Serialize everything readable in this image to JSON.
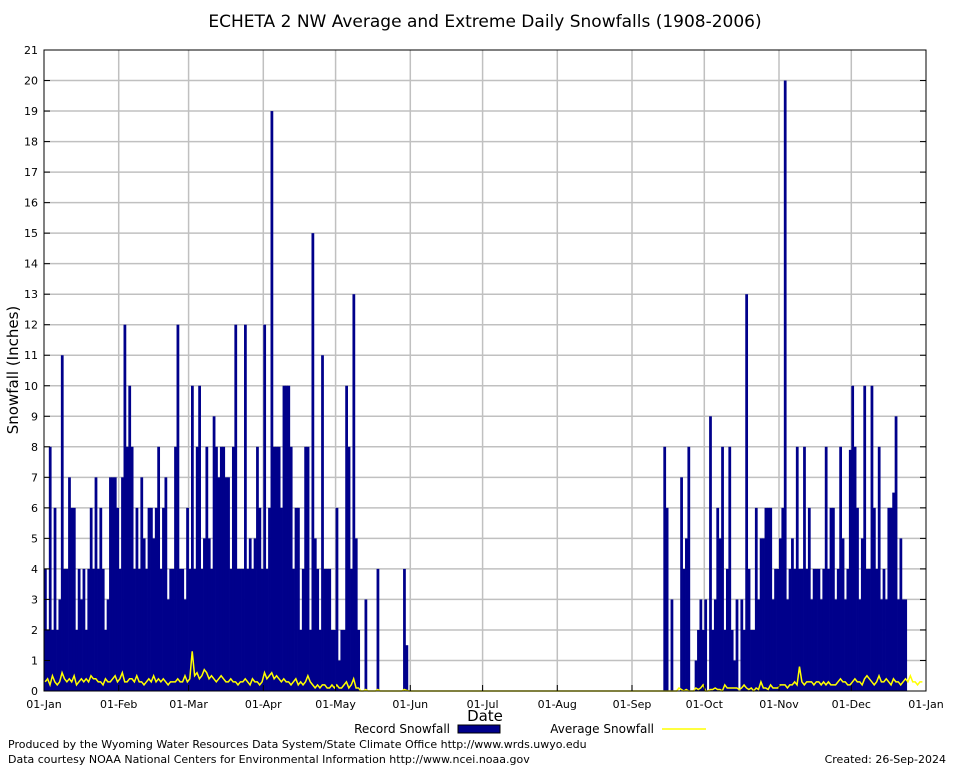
{
  "chart_data": {
    "type": "bar",
    "title": "ECHETA 2 NW Average and Extreme Daily Snowfalls (1908-2006)",
    "xlabel": "Date",
    "ylabel": "Snowfall (Inches)",
    "ylim": [
      0,
      21
    ],
    "yticks": [
      "0",
      "1",
      "2",
      "3",
      "4",
      "5",
      "6",
      "7",
      "8",
      "9",
      "10",
      "11",
      "12",
      "13",
      "14",
      "15",
      "16",
      "17",
      "18",
      "19",
      "20",
      "21"
    ],
    "xticks": [
      {
        "label": "01-Jan",
        "day": 0
      },
      {
        "label": "01-Feb",
        "day": 31
      },
      {
        "label": "01-Mar",
        "day": 60
      },
      {
        "label": "01-Apr",
        "day": 91
      },
      {
        "label": "01-May",
        "day": 121
      },
      {
        "label": "01-Jun",
        "day": 152
      },
      {
        "label": "01-Jul",
        "day": 182
      },
      {
        "label": "01-Aug",
        "day": 213
      },
      {
        "label": "01-Sep",
        "day": 244
      },
      {
        "label": "01-Oct",
        "day": 274
      },
      {
        "label": "01-Nov",
        "day": 305
      },
      {
        "label": "01-Dec",
        "day": 335
      },
      {
        "label": "01-Jan",
        "day": 366
      }
    ],
    "days": 366,
    "grid": true,
    "legend_position": "bottom",
    "series": [
      {
        "name": "Record Snowfall",
        "color": "#00008b",
        "values": [
          4,
          2,
          8,
          2,
          6,
          2,
          3,
          11,
          4,
          4,
          7,
          6,
          6,
          2,
          4,
          3,
          4,
          2,
          4,
          6,
          4,
          7,
          4,
          6,
          4,
          2,
          3,
          7,
          7,
          7,
          6,
          4,
          7,
          12,
          8,
          10,
          8,
          4,
          6,
          4,
          7,
          5,
          4,
          6,
          6,
          5,
          6,
          8,
          4,
          6,
          7,
          3,
          4,
          4,
          8,
          12,
          4,
          4,
          3,
          6,
          4,
          10,
          4,
          8,
          10,
          4,
          5,
          8,
          5,
          4,
          9,
          8,
          7,
          8,
          8,
          7,
          7,
          4,
          8,
          12,
          4,
          4,
          4,
          12,
          4,
          5,
          4,
          5,
          8,
          6,
          4,
          12,
          4,
          6,
          19,
          8,
          8,
          8,
          6,
          10,
          10,
          10,
          8,
          4,
          6,
          6,
          2,
          4,
          8,
          8,
          2,
          15,
          5,
          4,
          2,
          11,
          4,
          4,
          4,
          2,
          2,
          6,
          1,
          2,
          2,
          10,
          8,
          4,
          13,
          5,
          2,
          0,
          0,
          3,
          0,
          0,
          0,
          0,
          4,
          0,
          0,
          0,
          0,
          0,
          0,
          0,
          0,
          0,
          0,
          4,
          1.5,
          0,
          0,
          0,
          0,
          0,
          0,
          0,
          0,
          0,
          0,
          0,
          0,
          0,
          0,
          0,
          0,
          0,
          0,
          0,
          0,
          0,
          0,
          0,
          0,
          0,
          0,
          0,
          0,
          0,
          0,
          0,
          0,
          0,
          0,
          0,
          0,
          0,
          0,
          0,
          0,
          0,
          0,
          0,
          0,
          0,
          0,
          0,
          0,
          0,
          0,
          0,
          0,
          0,
          0,
          0,
          0,
          0,
          0,
          0,
          0,
          0,
          0,
          0,
          0,
          0,
          0,
          0,
          0,
          0,
          0,
          0,
          0,
          0,
          0,
          0,
          0,
          0,
          0,
          0,
          0,
          0,
          0,
          0,
          0,
          0,
          0,
          0,
          0,
          0,
          0,
          0,
          0,
          0,
          0,
          0,
          0,
          0,
          0,
          0,
          0,
          0,
          0,
          0,
          0,
          0,
          0,
          8,
          6,
          0,
          3,
          0,
          0,
          0,
          7,
          4,
          5,
          8,
          0,
          0,
          1,
          2,
          3,
          2,
          3,
          0,
          9,
          2,
          3,
          6,
          5,
          8,
          2,
          4,
          8,
          2,
          1,
          3,
          0,
          3,
          2,
          13,
          4,
          2,
          2,
          6,
          3,
          5,
          5,
          6,
          6,
          6,
          3,
          4,
          4,
          5,
          6,
          20,
          3,
          4,
          5,
          4,
          8,
          4,
          4,
          8,
          4,
          6,
          3,
          4,
          4,
          4,
          3,
          4,
          8,
          4,
          6,
          6,
          3,
          4,
          8,
          5,
          3,
          4,
          7.9,
          10,
          8,
          6,
          3,
          5,
          10,
          4,
          4,
          10,
          6,
          4,
          8,
          3,
          4,
          3,
          6,
          6,
          6.5,
          9,
          3,
          5,
          3,
          3
        ]
      },
      {
        "name": "Average Snowfall",
        "color": "#ffff00",
        "values": [
          0.3,
          0.4,
          0.2,
          0.5,
          0.3,
          0.2,
          0.3,
          0.6,
          0.4,
          0.3,
          0.4,
          0.3,
          0.5,
          0.2,
          0.3,
          0.4,
          0.3,
          0.4,
          0.3,
          0.5,
          0.4,
          0.4,
          0.3,
          0.3,
          0.2,
          0.4,
          0.3,
          0.3,
          0.4,
          0.5,
          0.3,
          0.4,
          0.6,
          0.3,
          0.3,
          0.4,
          0.4,
          0.3,
          0.5,
          0.3,
          0.3,
          0.2,
          0.3,
          0.4,
          0.3,
          0.5,
          0.3,
          0.4,
          0.3,
          0.4,
          0.3,
          0.2,
          0.3,
          0.3,
          0.3,
          0.4,
          0.3,
          0.3,
          0.5,
          0.3,
          0.4,
          1.3,
          0.5,
          0.6,
          0.4,
          0.5,
          0.7,
          0.6,
          0.4,
          0.5,
          0.4,
          0.3,
          0.4,
          0.5,
          0.4,
          0.3,
          0.3,
          0.4,
          0.3,
          0.3,
          0.2,
          0.3,
          0.3,
          0.4,
          0.3,
          0.2,
          0.4,
          0.3,
          0.3,
          0.2,
          0.3,
          0.6,
          0.4,
          0.5,
          0.6,
          0.4,
          0.5,
          0.4,
          0.3,
          0.4,
          0.3,
          0.3,
          0.2,
          0.3,
          0.4,
          0.2,
          0.3,
          0.2,
          0.3,
          0.5,
          0.3,
          0.2,
          0.1,
          0.2,
          0.1,
          0.2,
          0.2,
          0.1,
          0.1,
          0.2,
          0.1,
          0.2,
          0.1,
          0.1,
          0.2,
          0.3,
          0.1,
          0.2,
          0.4,
          0.1,
          0.1,
          0,
          0,
          0.05,
          0,
          0,
          0,
          0,
          0.05,
          0,
          0,
          0,
          0,
          0,
          0,
          0,
          0,
          0,
          0,
          0.05,
          0.02,
          0,
          0,
          0,
          0,
          0,
          0,
          0,
          0,
          0,
          0,
          0,
          0,
          0,
          0,
          0,
          0,
          0,
          0,
          0,
          0,
          0,
          0,
          0,
          0,
          0,
          0,
          0,
          0,
          0,
          0,
          0,
          0,
          0,
          0,
          0,
          0,
          0,
          0,
          0,
          0,
          0,
          0,
          0,
          0,
          0,
          0,
          0,
          0,
          0,
          0,
          0,
          0,
          0,
          0,
          0,
          0,
          0,
          0,
          0,
          0,
          0,
          0,
          0,
          0,
          0,
          0,
          0,
          0,
          0,
          0,
          0,
          0,
          0,
          0,
          0,
          0,
          0,
          0,
          0,
          0,
          0,
          0,
          0,
          0,
          0,
          0,
          0,
          0,
          0,
          0,
          0,
          0,
          0,
          0,
          0,
          0,
          0,
          0,
          0,
          0,
          0,
          0,
          0,
          0,
          0,
          0,
          0,
          0,
          0,
          0,
          0,
          0,
          0.1,
          0.05,
          0,
          0.05,
          0,
          0,
          0,
          0.1,
          0.05,
          0.1,
          0.2,
          0,
          0,
          0.05,
          0.05,
          0.1,
          0.05,
          0.05,
          0,
          0.2,
          0.1,
          0.1,
          0.1,
          0.1,
          0.1,
          0.05,
          0.1,
          0.2,
          0.1,
          0.05,
          0.1,
          0,
          0.1,
          0.05,
          0.3,
          0.1,
          0.1,
          0.05,
          0.2,
          0.1,
          0.1,
          0.1,
          0.2,
          0.2,
          0.2,
          0.1,
          0.2,
          0.2,
          0.3,
          0.2,
          0.8,
          0.3,
          0.2,
          0.3,
          0.3,
          0.3,
          0.2,
          0.3,
          0.3,
          0.2,
          0.3,
          0.2,
          0.3,
          0.2,
          0.2,
          0.2,
          0.3,
          0.4,
          0.3,
          0.3,
          0.2,
          0.2,
          0.3,
          0.4,
          0.3,
          0.3,
          0.2,
          0.4,
          0.5,
          0.4,
          0.3,
          0.2,
          0.3,
          0.5,
          0.3,
          0.3,
          0.4,
          0.3,
          0.2,
          0.4,
          0.3,
          0.3,
          0.2,
          0.3,
          0.4,
          0.3,
          0.5,
          0.3,
          0.3,
          0.2,
          0.3,
          0.3
        ]
      }
    ]
  },
  "footer": {
    "credit1": "Produced by the Wyoming Water Resources Data System/State Climate Office http://www.wrds.uwyo.edu",
    "credit2": "Data courtesy NOAA National Centers for Environmental Information http://www.ncei.noaa.gov",
    "created": "Created:  26-Sep-2024"
  }
}
